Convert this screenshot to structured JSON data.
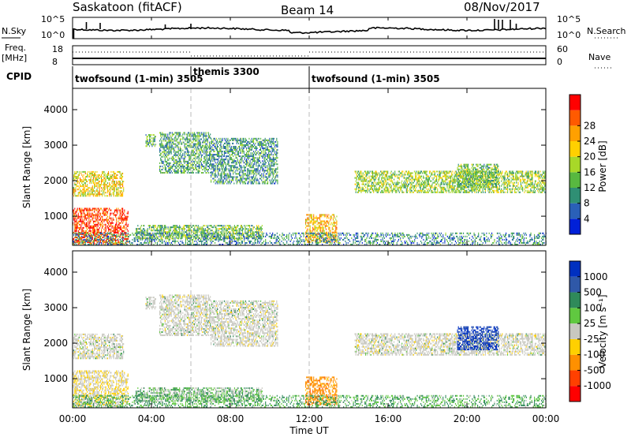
{
  "header": {
    "station": "Saskatoon (fitACF)",
    "beam": "Beam 14",
    "date": "08/Nov/2017"
  },
  "noise_panel": {
    "left_label": "N.Sky",
    "right_label": "N.Search",
    "left_ticks": [
      "10^5",
      "10^0"
    ],
    "right_ticks": [
      "10^5",
      "10^0"
    ]
  },
  "freq_panel": {
    "left_label_1": "Freq.",
    "left_label_2": "[MHz]",
    "right_label": "Nave",
    "left_ticks": [
      "18",
      "8"
    ],
    "right_ticks": [
      "60",
      "0"
    ]
  },
  "cpid": {
    "label": "CPID",
    "segments": [
      {
        "name": "twofsound (1-min) 3505",
        "start_hr": 0,
        "end_hr": 6
      },
      {
        "name": "themis 3300",
        "start_hr": 6,
        "end_hr": 12
      },
      {
        "name": "twofsound (1-min) 3505",
        "start_hr": 12,
        "end_hr": 24
      }
    ]
  },
  "x_axis": {
    "label": "Time UT",
    "ticks": [
      "00:00",
      "04:00",
      "08:00",
      "12:00",
      "16:00",
      "20:00",
      "00:00"
    ],
    "range_hr": [
      0,
      24
    ]
  },
  "range_axis": {
    "label": "Slant Range [km]",
    "ticks": [
      1000,
      2000,
      3000,
      4000
    ],
    "range_km": [
      180,
      4600
    ]
  },
  "power_colorbar": {
    "label": "Power [dB]",
    "ticks": [
      "4",
      "8",
      "12",
      "16",
      "20",
      "24",
      "28"
    ],
    "colors": [
      "#0020d8",
      "#2a60b8",
      "#2f8f74",
      "#58b840",
      "#a8d828",
      "#ffd000",
      "#ffa000",
      "#ff5a00",
      "#ff0000"
    ]
  },
  "velocity_colorbar": {
    "label": "Velocity [m s⁻¹]",
    "ticks": [
      "1000",
      "500",
      "100",
      "25",
      "-25",
      "-100",
      "-500",
      "-1000"
    ],
    "colors": [
      "#0030c0",
      "#2f58a8",
      "#2f8a5a",
      "#60c840",
      "#c8c8c0",
      "#ffd000",
      "#ff9000",
      "#ff4000",
      "#ff0000"
    ]
  },
  "chart_data": {
    "type": "heatmap",
    "title": "Saskatoon (fitACF)  Beam 14  08/Nov/2017",
    "xlabel": "Time UT",
    "ylabel": "Slant Range [km]",
    "xlim_hr": [
      0,
      24
    ],
    "ylim_km": [
      180,
      4600
    ],
    "power_db_range": [
      0,
      30
    ],
    "velocity_range": [
      -1000,
      1000
    ],
    "scatter_regions": [
      {
        "t0": 0.0,
        "t1": 2.6,
        "r0": 1550,
        "r1": 2250,
        "power_db": 18,
        "velocity": 0
      },
      {
        "t0": 3.7,
        "t1": 4.2,
        "r0": 2950,
        "r1": 3300,
        "power_db": 10,
        "velocity": 0
      },
      {
        "t0": 4.4,
        "t1": 7.0,
        "r0": 2200,
        "r1": 3350,
        "power_db": 10,
        "velocity": 0
      },
      {
        "t0": 7.0,
        "t1": 10.4,
        "r0": 1900,
        "r1": 3200,
        "power_db": 9,
        "velocity": 0
      },
      {
        "t0": 0.0,
        "t1": 2.8,
        "r0": 200,
        "r1": 1200,
        "power_db": 26,
        "velocity": -20
      },
      {
        "t0": 3.2,
        "t1": 9.6,
        "r0": 350,
        "r1": 750,
        "power_db": 12,
        "velocity": 30
      },
      {
        "t0": 11.8,
        "t1": 13.4,
        "r0": 250,
        "r1": 1050,
        "power_db": 20,
        "velocity": -300
      },
      {
        "t0": 14.3,
        "t1": 24.0,
        "r0": 1650,
        "r1": 2250,
        "power_db": 14,
        "velocity": 0
      },
      {
        "t0": 19.5,
        "t1": 21.6,
        "r0": 1800,
        "r1": 2450,
        "power_db": 12,
        "velocity": 600
      },
      {
        "t0": 0.0,
        "t1": 24.0,
        "r0": 180,
        "r1": 500,
        "power_db": 8,
        "velocity": 50
      }
    ]
  }
}
